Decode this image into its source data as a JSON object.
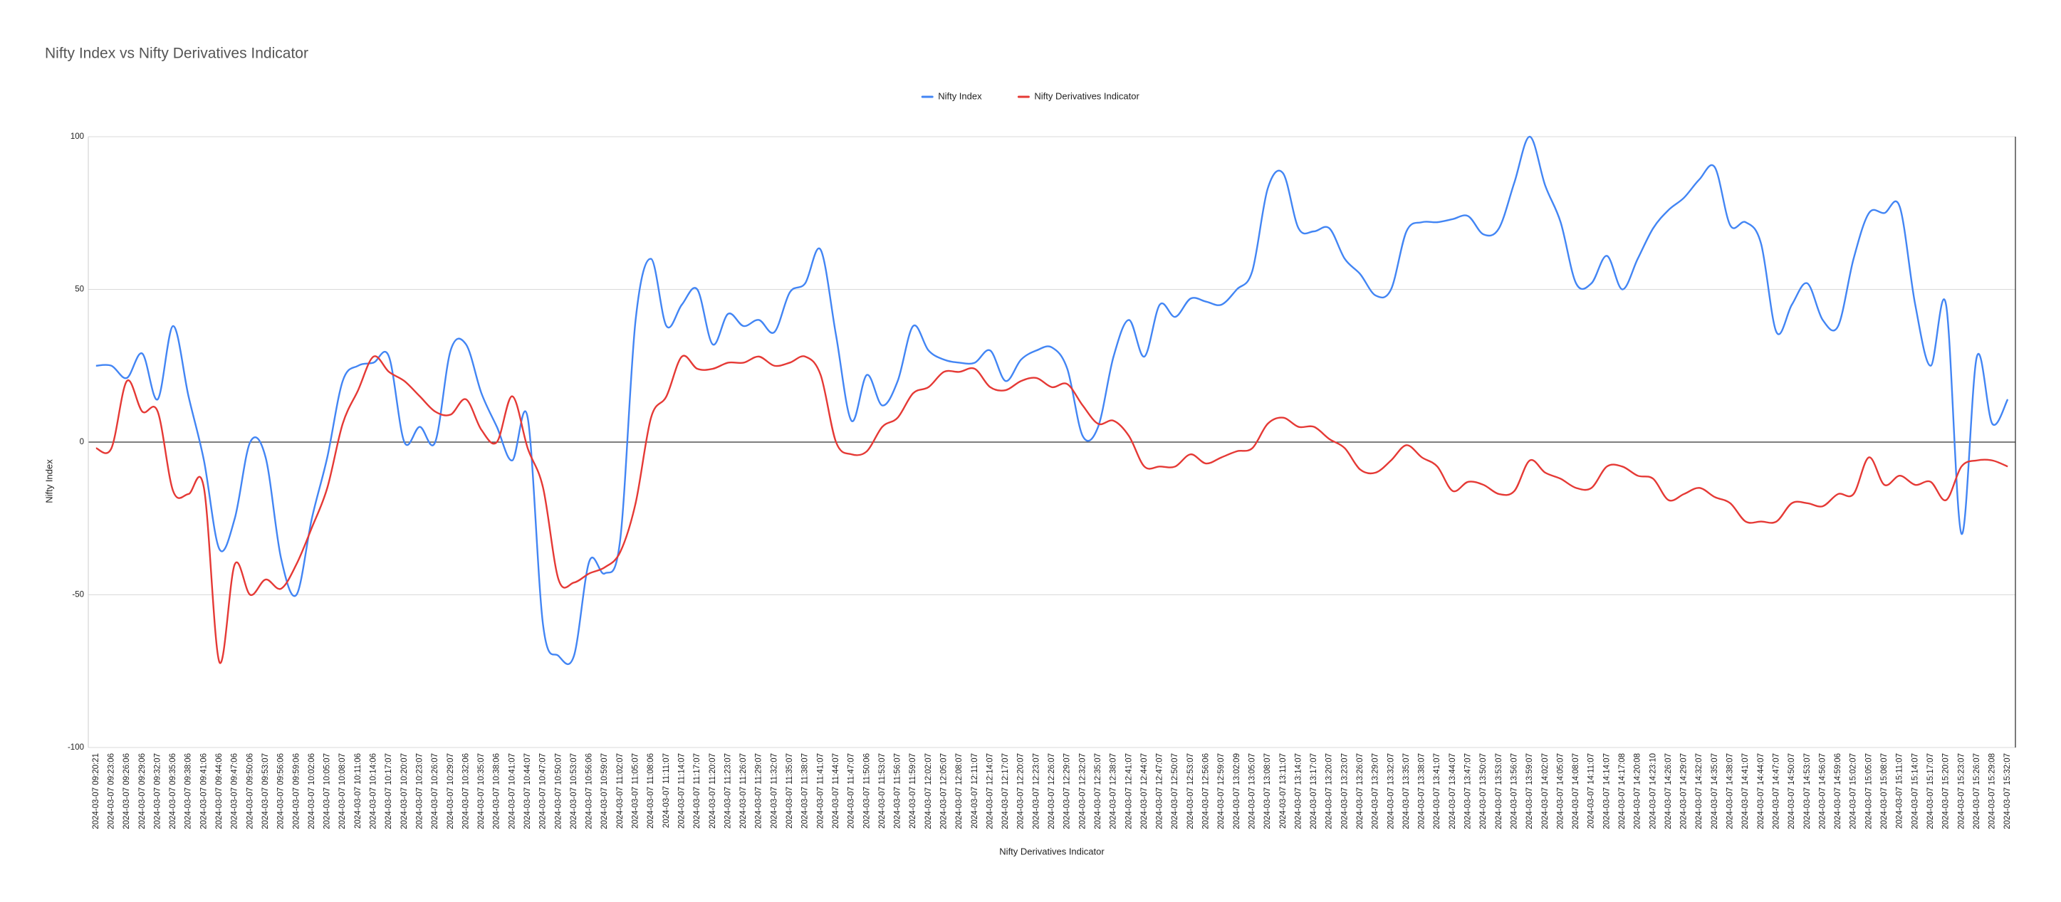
{
  "chart_data": {
    "type": "line",
    "title": "Nifty Index vs Nifty Derivatives Indicator",
    "x_label": "Nifty Derivatives Indicator",
    "y_label": "Nifty Index",
    "categories": [
      "2024-03-07 09:20:21",
      "2024-03-07 09:23:06",
      "2024-03-07 09:26:06",
      "2024-03-07 09:29:06",
      "2024-03-07 09:32:07",
      "2024-03-07 09:35:06",
      "2024-03-07 09:38:06",
      "2024-03-07 09:41:06",
      "2024-03-07 09:44:06",
      "2024-03-07 09:47:06",
      "2024-03-07 09:50:06",
      "2024-03-07 09:53:07",
      "2024-03-07 09:56:06",
      "2024-03-07 09:59:06",
      "2024-03-07 10:02:06",
      "2024-03-07 10:05:07",
      "2024-03-07 10:08:07",
      "2024-03-07 10:11:06",
      "2024-03-07 10:14:06",
      "2024-03-07 10:17:07",
      "2024-03-07 10:20:07",
      "2024-03-07 10:23:07",
      "2024-03-07 10:26:07",
      "2024-03-07 10:29:07",
      "2024-03-07 10:32:06",
      "2024-03-07 10:35:07",
      "2024-03-07 10:38:06",
      "2024-03-07 10:41:07",
      "2024-03-07 10:44:07",
      "2024-03-07 10:47:07",
      "2024-03-07 10:50:07",
      "2024-03-07 10:53:07",
      "2024-03-07 10:56:06",
      "2024-03-07 10:59:07",
      "2024-03-07 11:02:07",
      "2024-03-07 11:05:07",
      "2024-03-07 11:08:06",
      "2024-03-07 11:11:07",
      "2024-03-07 11:14:07",
      "2024-03-07 11:17:07",
      "2024-03-07 11:20:07",
      "2024-03-07 11:23:07",
      "2024-03-07 11:26:07",
      "2024-03-07 11:29:07",
      "2024-03-07 11:32:07",
      "2024-03-07 11:35:07",
      "2024-03-07 11:38:07",
      "2024-03-07 11:41:07",
      "2024-03-07 11:44:07",
      "2024-03-07 11:47:07",
      "2024-03-07 11:50:06",
      "2024-03-07 11:53:07",
      "2024-03-07 11:56:07",
      "2024-03-07 11:59:07",
      "2024-03-07 12:02:07",
      "2024-03-07 12:05:07",
      "2024-03-07 12:08:07",
      "2024-03-07 12:11:07",
      "2024-03-07 12:14:07",
      "2024-03-07 12:17:07",
      "2024-03-07 12:20:07",
      "2024-03-07 12:23:07",
      "2024-03-07 12:26:07",
      "2024-03-07 12:29:07",
      "2024-03-07 12:32:07",
      "2024-03-07 12:35:07",
      "2024-03-07 12:38:07",
      "2024-03-07 12:41:07",
      "2024-03-07 12:44:07",
      "2024-03-07 12:47:07",
      "2024-03-07 12:50:07",
      "2024-03-07 12:53:07",
      "2024-03-07 12:56:06",
      "2024-03-07 12:59:07",
      "2024-03-07 13:02:09",
      "2024-03-07 13:05:07",
      "2024-03-07 13:08:07",
      "2024-03-07 13:11:07",
      "2024-03-07 13:14:07",
      "2024-03-07 13:17:07",
      "2024-03-07 13:20:07",
      "2024-03-07 13:23:07",
      "2024-03-07 13:26:07",
      "2024-03-07 13:29:07",
      "2024-03-07 13:32:07",
      "2024-03-07 13:35:07",
      "2024-03-07 13:38:07",
      "2024-03-07 13:41:07",
      "2024-03-07 13:44:07",
      "2024-03-07 13:47:07",
      "2024-03-07 13:50:07",
      "2024-03-07 13:53:07",
      "2024-03-07 13:56:07",
      "2024-03-07 13:59:07",
      "2024-03-07 14:02:07",
      "2024-03-07 14:05:07",
      "2024-03-07 14:08:07",
      "2024-03-07 14:11:07",
      "2024-03-07 14:14:07",
      "2024-03-07 14:17:08",
      "2024-03-07 14:20:08",
      "2024-03-07 14:23:10",
      "2024-03-07 14:26:07",
      "2024-03-07 14:29:07",
      "2024-03-07 14:32:07",
      "2024-03-07 14:35:07",
      "2024-03-07 14:38:07",
      "2024-03-07 14:41:07",
      "2024-03-07 14:44:07",
      "2024-03-07 14:47:07",
      "2024-03-07 14:50:07",
      "2024-03-07 14:53:07",
      "2024-03-07 14:56:07",
      "2024-03-07 14:59:06",
      "2024-03-07 15:02:07",
      "2024-03-07 15:05:07",
      "2024-03-07 15:08:07",
      "2024-03-07 15:11:07",
      "2024-03-07 15:14:07",
      "2024-03-07 15:17:07",
      "2024-03-07 15:20:07",
      "2024-03-07 15:23:07",
      "2024-03-07 15:26:07",
      "2024-03-07 15:29:08",
      "2024-03-07 15:32:07"
    ],
    "series": [
      {
        "name": "Nifty Index",
        "color": "#4285f4",
        "values": [
          25,
          25,
          21,
          29,
          14,
          38,
          15,
          -6,
          -35,
          -25,
          0,
          -5,
          -38,
          -50,
          -25,
          -5,
          20,
          25,
          26,
          28,
          0,
          5,
          0,
          30,
          32,
          16,
          5,
          -6,
          8,
          -60,
          -70,
          -70,
          -39,
          -43,
          -32,
          40,
          60,
          38,
          45,
          50,
          32,
          42,
          38,
          40,
          36,
          49,
          52,
          63,
          35,
          7,
          22,
          12,
          20,
          38,
          30,
          27,
          26,
          26,
          30,
          20,
          27,
          30,
          31,
          24,
          2,
          5,
          28,
          40,
          28,
          45,
          41,
          47,
          46,
          45,
          50,
          56,
          83,
          88,
          70,
          69,
          70,
          60,
          55,
          48,
          50,
          69,
          72,
          72,
          73,
          74,
          68,
          70,
          85,
          100,
          84,
          72,
          52,
          52,
          61,
          50,
          60,
          70,
          76,
          80,
          86,
          90,
          71,
          72,
          65,
          36,
          45,
          52,
          40,
          38,
          60,
          75,
          75,
          77,
          45,
          25,
          45,
          -30,
          28,
          6,
          14
        ]
      },
      {
        "name": "Nifty Derivatives Indicator",
        "color": "#e53935",
        "values": [
          -2,
          -2,
          20,
          10,
          10,
          -16,
          -17,
          -15,
          -72,
          -40,
          -50,
          -45,
          -48,
          -40,
          -28,
          -15,
          6,
          17,
          28,
          23,
          20,
          15,
          10,
          9,
          14,
          4,
          0,
          15,
          -2,
          -15,
          -45,
          -46,
          -43,
          -41,
          -36,
          -20,
          8,
          15,
          28,
          24,
          24,
          26,
          26,
          28,
          25,
          26,
          28,
          22,
          0,
          -4,
          -3,
          5,
          8,
          16,
          18,
          23,
          23,
          24,
          18,
          17,
          20,
          21,
          18,
          19,
          12,
          6,
          7,
          2,
          -8,
          -8,
          -8,
          -4,
          -7,
          -5,
          -3,
          -2,
          6,
          8,
          5,
          5,
          1,
          -2,
          -9,
          -10,
          -6,
          -1,
          -5,
          -8,
          -16,
          -13,
          -14,
          -17,
          -16,
          -6,
          -10,
          -12,
          -15,
          -15,
          -8,
          -8,
          -11,
          -12,
          -19,
          -17,
          -15,
          -18,
          -20,
          -26,
          -26,
          -26,
          -20,
          -20,
          -21,
          -17,
          -17,
          -5,
          -14,
          -11,
          -14,
          -13,
          -19,
          -8,
          -6,
          -6,
          -8
        ]
      }
    ],
    "ylim": [
      -100,
      100
    ],
    "yticks": [
      -100,
      -50,
      0,
      50,
      100
    ],
    "grid": true,
    "legend": "top"
  }
}
